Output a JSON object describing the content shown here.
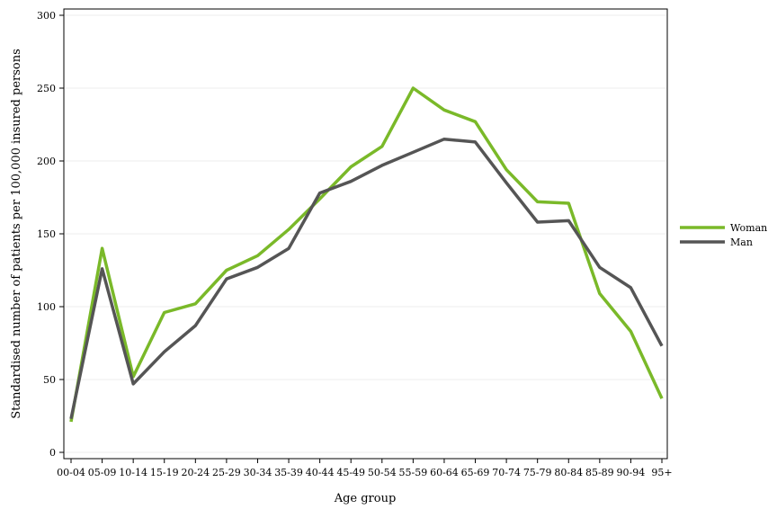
{
  "chart_data": {
    "type": "line",
    "xlabel": "Age group",
    "ylabel": "Standardised number of patients per 100,000 insured persons",
    "categories": [
      "00-04",
      "05-09",
      "10-14",
      "15-19",
      "20-24",
      "25-29",
      "30-34",
      "35-39",
      "40-44",
      "45-49",
      "50-54",
      "55-59",
      "60-64",
      "65-69",
      "70-74",
      "75-79",
      "80-84",
      "85-89",
      "90-94",
      "95+"
    ],
    "ylim": [
      0,
      300
    ],
    "yticks": [
      0,
      50,
      100,
      150,
      200,
      250,
      300
    ],
    "grid": "horizontal",
    "legend_position": "right",
    "series": [
      {
        "name": "Woman",
        "color": "#7ab929",
        "values": [
          21,
          140,
          52,
          96,
          102,
          125,
          135,
          153,
          174,
          196,
          210,
          250,
          235,
          227,
          194,
          172,
          171,
          109,
          83,
          37
        ]
      },
      {
        "name": "Man",
        "color": "#555555",
        "values": [
          23,
          126,
          47,
          69,
          87,
          119,
          127,
          140,
          178,
          186,
          197,
          206,
          215,
          213,
          185,
          158,
          159,
          127,
          113,
          73
        ]
      }
    ]
  }
}
